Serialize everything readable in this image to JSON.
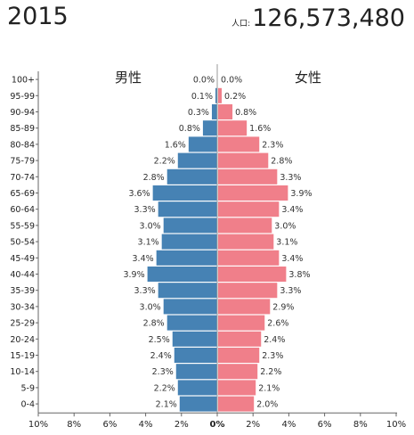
{
  "header": {
    "year": "2015",
    "population_label": "人口:",
    "population": "126,573,480"
  },
  "chart_data": {
    "type": "bar",
    "title": "",
    "male_label": "男性",
    "female_label": "女性",
    "male_color": "#4682b4",
    "female_color": "#f07f8a",
    "xlim": [
      -10,
      10
    ],
    "x_ticks": [
      "10%",
      "8%",
      "6%",
      "4%",
      "2%",
      "0%",
      "2%",
      "4%",
      "6%",
      "8%",
      "10%"
    ],
    "categories": [
      "100+",
      "95-99",
      "90-94",
      "85-89",
      "80-84",
      "75-79",
      "70-74",
      "65-69",
      "60-64",
      "55-59",
      "50-54",
      "45-49",
      "40-44",
      "35-39",
      "30-34",
      "25-29",
      "20-24",
      "15-19",
      "10-14",
      "5-9",
      "0-4"
    ],
    "series": [
      {
        "name": "男性",
        "values": [
          0.0,
          0.1,
          0.3,
          0.8,
          1.6,
          2.2,
          2.8,
          3.6,
          3.3,
          3.0,
          3.1,
          3.4,
          3.9,
          3.3,
          3.0,
          2.8,
          2.5,
          2.4,
          2.3,
          2.2,
          2.1
        ]
      },
      {
        "name": "女性",
        "values": [
          0.0,
          0.2,
          0.8,
          1.6,
          2.3,
          2.8,
          3.3,
          3.9,
          3.4,
          3.0,
          3.1,
          3.4,
          3.8,
          3.3,
          2.9,
          2.6,
          2.4,
          2.3,
          2.2,
          2.1,
          2.0
        ]
      }
    ],
    "value_labels": {
      "male": [
        "0.0%",
        "0.1%",
        "0.3%",
        "0.8%",
        "1.6%",
        "2.2%",
        "2.8%",
        "3.6%",
        "3.3%",
        "3.0%",
        "3.1%",
        "3.4%",
        "3.9%",
        "3.3%",
        "3.0%",
        "2.8%",
        "2.5%",
        "2.4%",
        "2.3%",
        "2.2%",
        "2.1%"
      ],
      "female": [
        "0.0%",
        "0.2%",
        "0.8%",
        "1.6%",
        "2.3%",
        "2.8%",
        "3.3%",
        "3.9%",
        "3.4%",
        "3.0%",
        "3.1%",
        "3.4%",
        "3.8%",
        "3.3%",
        "2.9%",
        "2.6%",
        "2.4%",
        "2.3%",
        "2.2%",
        "2.1%",
        "2.0%"
      ]
    }
  }
}
